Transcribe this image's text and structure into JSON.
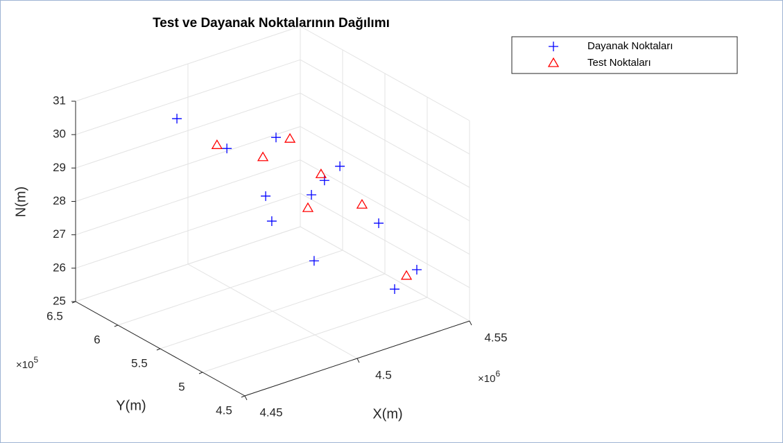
{
  "chart_data": {
    "type": "scatter3d",
    "title": "Test ve Dayanak Noktalarının Dağılımı",
    "xlabel": "X(m)",
    "ylabel": "Y(m)",
    "zlabel": "N(m)",
    "x_multiplier": {
      "label": "×10",
      "exponent": 6
    },
    "y_multiplier": {
      "label": "×10",
      "exponent": 5
    },
    "xlim": [
      4.45,
      4.55
    ],
    "xticks": [
      4.45,
      4.5,
      4.55
    ],
    "ylim": [
      4.5,
      6.5
    ],
    "yticks": [
      4.5,
      5,
      5.5,
      6,
      6.5
    ],
    "zlim": [
      25,
      31
    ],
    "zticks": [
      25,
      26,
      27,
      28,
      29,
      30,
      31
    ],
    "grid": true,
    "legend": "northeast-outside",
    "series": [
      {
        "name": "Dayanak Noktaları",
        "color": "#0000ff",
        "marker": "plus",
        "x": [
          4.4725,
          4.4872,
          4.5166,
          4.5375,
          4.5231,
          4.5173,
          4.4894,
          4.4846,
          4.5397,
          4.4959,
          4.5416,
          4.5242
        ],
        "y": [
          5.9,
          5.7,
          5.9,
          5.7,
          5.5,
          5.5,
          5.3,
          5.1,
          5.3,
          4.9,
          4.9,
          4.7
        ],
        "z": [
          30.82,
          29.88,
          29.27,
          28.22,
          28.4,
          28.1,
          28.97,
          28.61,
          27.03,
          27.45,
          26.16,
          26.25
        ]
      },
      {
        "name": "Test Noktaları",
        "color": "#ff0000",
        "marker": "triangle",
        "x": [
          4.4828,
          4.5228,
          4.4957,
          4.5291,
          4.5082,
          4.5398,
          4.537
        ],
        "y": [
          5.7,
          5.9,
          5.5,
          5.7,
          5.3,
          5.5,
          4.9
        ],
        "z": [
          30.08,
          29.09,
          29.71,
          28.17,
          28.19,
          27.3,
          26.08
        ]
      }
    ]
  }
}
